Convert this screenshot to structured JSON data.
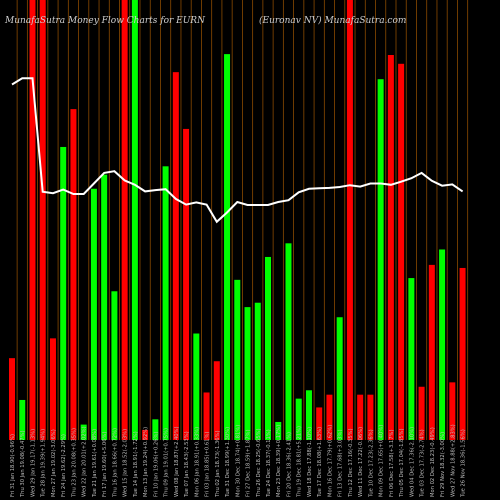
{
  "chart_data": {
    "type": "bar",
    "title": "MunafaSutra  Money Flow  Charts for EURN",
    "subtitle": "(Euronav   NV) MunafaSutra.com",
    "xlabel": "",
    "ylabel": "",
    "ylim": [
      0,
      100
    ],
    "grid": "vertical",
    "categories": [
      "Fri 31 Jan 18.90(-0.96%)",
      "Thu 30 Jan 19.08(-0.47%)",
      "Wed 29 Jan 19.17(-1.13%)",
      "Tue 28 Jan 19.39(+1.94%)",
      "Mon 27 Jan 19.02(-3.06%)",
      "Fri 24 Jan 19.62(-2.29%)",
      "Thu 23 Jan 20.08(+0.35%)",
      "Wed 22 Jan 20.01(+2.02%)",
      "Tue 21 Jan 19.61(+0.08%)",
      "Fri 17 Jan 19.60(+5.06%)",
      "Thu 16 Jan 18.66(+0.72%)",
      "Wed 15 Jan 18.52(-2.03%)",
      "Tue 14 Jan 18.91(-1.72%)",
      "Mon 13 Jan 19.24(+0.92%)",
      "Fri 10 Jan 19.06(+0.26%)",
      "Thu 09 Jan 19.01(+0.75%)",
      "Wed 08 Jan 18.87(+2.40%)",
      "Tue 07 Jan 18.43(-2.53%)",
      "Mon 06 Jan 18.91(+0.33%)",
      "Fri 03 Jan 18.85(+0.61%)",
      "Thu 02 Jan 18.73(-1.36%)",
      "Tue 31 Dec 18.99(+1.30%)",
      "Mon 30 Dec 18.74(+0.81%)",
      "Fri 27 Dec 18.59(+1.87%)",
      "Thu 26 Dec 18.25(-0.65%)",
      "Tue 24 Dec 18.37(-0.11%)",
      "Mon 23 Dec 18.39(+0.17%)",
      "Fri 20 Dec 18.36(-2.41%)",
      "Thu 19 Dec 18.81(+5.21%)",
      "Wed 18 Dec 17.88(-1.10%)",
      "Tue 17 Dec 18.08(+1.63%)",
      "Mon 16 Dec 17.79(+0.62%)",
      "Fri 13 Dec 17.68(+3.03%)",
      "Thu 12 Dec 17.16(-0.35%)",
      "Wed 11 Dec 17.22(-0.06%)",
      "Tue 10 Dec 17.23(-2.36%)",
      "Mon 09 Dec 17.65(+0.40%)",
      "Fri 06 Dec 17.58(+3.17%)",
      "Thu 05 Dec 17.04(-1.85%)",
      "Wed 04 Dec 17.36(-2.10%)",
      "Tue 03 Dec 17.73(-2.74%)",
      "Mon 02 Dec 18.23(-0.49%)",
      "Fri 29 Nov 18.32(-3.00%)",
      "Wed 27 Nov 18.88(+2.83%)",
      "Tue 26 Nov 18.36(-1.56%)"
    ],
    "series": [
      {
        "type": "bar",
        "colors": [
          "#ff0000",
          "#00ff00",
          "#ff0000",
          "#ff0000",
          "#ff0000",
          "#00ff00",
          "#ff0000",
          "#00ff00",
          "#00ff00",
          "#00ff00",
          "#00ff00",
          "#ff0000",
          "#00ff00",
          "#ff0000",
          "#00ff00",
          "#00ff00",
          "#ff0000",
          "#ff0000",
          "#00ff00",
          "#ff0000",
          "#ff0000",
          "#00ff00",
          "#00ff00",
          "#00ff00",
          "#00ff00",
          "#00ff00",
          "#00ff00",
          "#00ff00",
          "#00ff00",
          "#00ff00",
          "#ff0000",
          "#ff0000",
          "#00ff00",
          "#ff0000",
          "#ff0000",
          "#ff0000",
          "#00ff00",
          "#ff0000",
          "#ff0000",
          "#00ff00",
          "#ff0000",
          "#ff0000",
          "#00ff00",
          "#ff0000",
          "#ff0000"
        ],
        "values": [
          18.6,
          9.1,
          100,
          100,
          23.1,
          66.6,
          75.2,
          3.5,
          57.1,
          60.3,
          33.8,
          100,
          100,
          2.3,
          4.7,
          62.2,
          83.6,
          70.7,
          24.2,
          10.8,
          17.9,
          87.7,
          36.4,
          30.2,
          31.2,
          41.6,
          4.1,
          44.7,
          9.4,
          11.3,
          7.4,
          10.3,
          27.9,
          100,
          10.3,
          10.3,
          82.0,
          87.5,
          85.5,
          36.8,
          12.1,
          39.8,
          43.3,
          13.1,
          39.1
        ]
      },
      {
        "type": "line",
        "color": "#ffffff",
        "values": [
          80.8,
          82.2,
          82.2,
          56.4,
          56.1,
          56.9,
          55.9,
          55.9,
          58.3,
          60.7,
          61.1,
          59.0,
          58.0,
          56.5,
          56.8,
          57.0,
          54.8,
          53.5,
          54.0,
          53.5,
          49.6,
          51.7,
          54.1,
          53.4,
          53.4,
          53.4,
          54.1,
          54.5,
          56.3,
          57.1,
          57.2,
          57.3,
          57.5,
          57.9,
          57.6,
          58.3,
          58.3,
          58.0,
          58.7,
          59.5,
          60.7,
          58.9,
          57.8,
          58.1,
          56.5
        ]
      }
    ]
  }
}
